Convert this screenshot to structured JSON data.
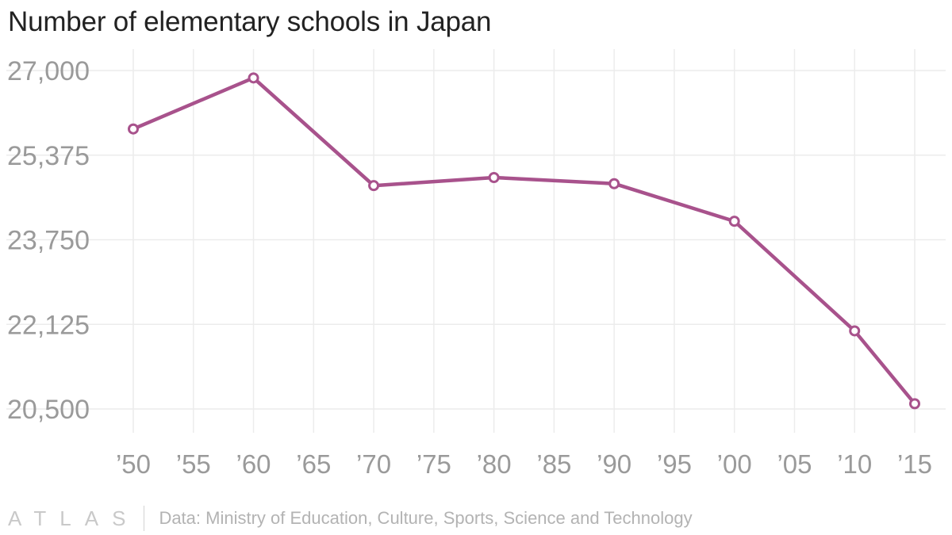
{
  "chart_data": {
    "type": "line",
    "title": "Number of elementary schools in Japan",
    "x": [
      1950,
      1955,
      1960,
      1965,
      1970,
      1975,
      1980,
      1985,
      1990,
      1995,
      2000,
      2005,
      2010,
      2015
    ],
    "x_tick_labels": [
      "’50",
      "’55",
      "’60",
      "’65",
      "’70",
      "’75",
      "’80",
      "’85",
      "’90",
      "’95",
      "’00",
      "’05",
      "’10",
      "’15"
    ],
    "points": [
      {
        "x": 1950,
        "y": 25878
      },
      {
        "x": 1960,
        "y": 26858
      },
      {
        "x": 1970,
        "y": 24790
      },
      {
        "x": 1980,
        "y": 24945
      },
      {
        "x": 1990,
        "y": 24827
      },
      {
        "x": 2000,
        "y": 24106
      },
      {
        "x": 2010,
        "y": 22000
      },
      {
        "x": 2015,
        "y": 20601
      }
    ],
    "y_ticks": [
      20500,
      22125,
      23750,
      25375,
      27000
    ],
    "y_tick_labels": [
      "20,500",
      "22,125",
      "23,750",
      "25,375",
      "27,000"
    ],
    "ylim": [
      20500,
      27000
    ],
    "xlim": [
      1950,
      2015
    ],
    "grid": true,
    "line_color": "#a8528c",
    "marker": "hollow-circle"
  },
  "footer": {
    "logo": "ATLAS",
    "source": "Data: Ministry of Education, Culture, Sports, Science and Technology"
  }
}
